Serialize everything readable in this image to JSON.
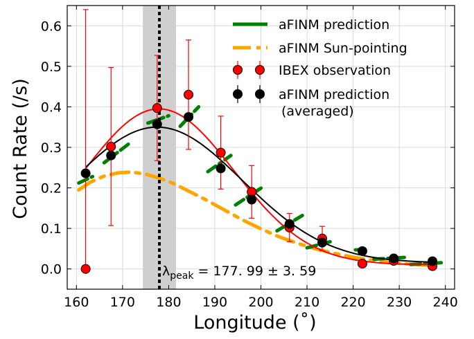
{
  "chart_data": {
    "type": "scatter",
    "xlabel": "Longitude (˚)",
    "ylabel": "Count Rate (/s)",
    "xlim": [
      158,
      242
    ],
    "ylim": [
      -0.05,
      0.65
    ],
    "xticks": [
      160,
      170,
      180,
      190,
      200,
      210,
      220,
      230,
      240
    ],
    "yticks": [
      0.0,
      0.1,
      0.2,
      0.3,
      0.4,
      0.5,
      0.6
    ],
    "xtick_labels": [
      "160",
      "170",
      "180",
      "190",
      "200",
      "210",
      "220",
      "230",
      "240"
    ],
    "ytick_labels": [
      "0.0",
      "0.1",
      "0.2",
      "0.3",
      "0.4",
      "0.5",
      "0.6"
    ],
    "grid": true,
    "legend_position": "top-right",
    "peak_band": [
      174.4,
      181.6
    ],
    "peak_line_x": 177.99,
    "annotation": {
      "prefix": "λ",
      "subscript": "peak",
      "text": " = 177. 99 ± 3. 59"
    },
    "series": [
      {
        "name": "aFINM prediction",
        "color": "#008000",
        "style": "dashed-line",
        "segments": [
          [
            [
              160.5,
              0.212
            ],
            [
              163.5,
              0.228
            ]
          ],
          [
            [
              166,
              0.262
            ],
            [
              171.5,
              0.31
            ]
          ],
          [
            [
              175.5,
              0.36
            ],
            [
              180,
              0.378
            ]
          ],
          [
            [
              182.5,
              0.352
            ],
            [
              186.5,
              0.4
            ]
          ],
          [
            [
              188.5,
              0.24
            ],
            [
              193.5,
              0.28
            ]
          ],
          [
            [
              194.5,
              0.158
            ],
            [
              200.5,
              0.203
            ]
          ],
          [
            [
              203.5,
              0.094
            ],
            [
              209,
              0.132
            ]
          ],
          [
            [
              210,
              0.052
            ],
            [
              215,
              0.067
            ]
          ],
          [
            [
              220.5,
              0.047
            ],
            [
              223.5,
              0.049
            ]
          ],
          [
            [
              224.5,
              0.024
            ],
            [
              232,
              0.029
            ]
          ],
          [
            [
              232.5,
              0.011
            ],
            [
              240,
              0.016
            ]
          ]
        ]
      },
      {
        "name": "aFINM Sun-pointing",
        "color": "#FFA500",
        "style": "dashed-line",
        "x": [
          160.5,
          163,
          166,
          169,
          172,
          175,
          178,
          181,
          184,
          188,
          192,
          196,
          200,
          204,
          208,
          212,
          216,
          220,
          224,
          228,
          232,
          236,
          239
        ],
        "y": [
          0.195,
          0.214,
          0.229,
          0.237,
          0.239,
          0.234,
          0.224,
          0.211,
          0.194,
          0.171,
          0.146,
          0.121,
          0.099,
          0.079,
          0.063,
          0.049,
          0.038,
          0.029,
          0.022,
          0.016,
          0.012,
          0.009,
          0.007
        ]
      },
      {
        "name": "IBEX observation",
        "color": "#FF0000",
        "style": "errorbar-markers",
        "x": [
          162,
          167.5,
          177.5,
          184.3,
          191.3,
          198,
          206.2,
          213.3,
          222,
          228.8,
          237.2
        ],
        "y": [
          0.0,
          0.302,
          0.397,
          0.43,
          0.287,
          0.19,
          0.102,
          0.075,
          0.013,
          0.02,
          0.007
        ],
        "yerr_low": [
          0.0,
          0.195,
          0.13,
          0.135,
          0.09,
          0.065,
          0.035,
          0.03,
          0.0,
          0.0,
          0.0
        ],
        "yerr_high": [
          0.64,
          0.195,
          0.13,
          0.135,
          0.09,
          0.065,
          0.035,
          0.03,
          0.0,
          0.0,
          0.0
        ],
        "fit_curve_color": "#FF0000"
      },
      {
        "name": "aFINM prediction\n(averaged)",
        "color": "#000000",
        "style": "errorbar-markers",
        "x": [
          162,
          167.5,
          177.5,
          184.3,
          191.3,
          198,
          206.2,
          213.3,
          222,
          228.8,
          237.2
        ],
        "y": [
          0.236,
          0.28,
          0.357,
          0.375,
          0.248,
          0.171,
          0.111,
          0.065,
          0.044,
          0.026,
          0.019
        ],
        "fit_curve_color": "#000000"
      }
    ],
    "legend": [
      {
        "label": "aFINM prediction",
        "color": "#008000",
        "kind": "line"
      },
      {
        "label": "aFINM Sun-pointing",
        "color": "#FFA500",
        "kind": "line"
      },
      {
        "label": "IBEX observation",
        "color": "#FF0000",
        "kind": "marker"
      },
      {
        "label": "aFINM prediction",
        "label2": "(averaged)",
        "color": "#000000",
        "kind": "marker"
      }
    ]
  }
}
